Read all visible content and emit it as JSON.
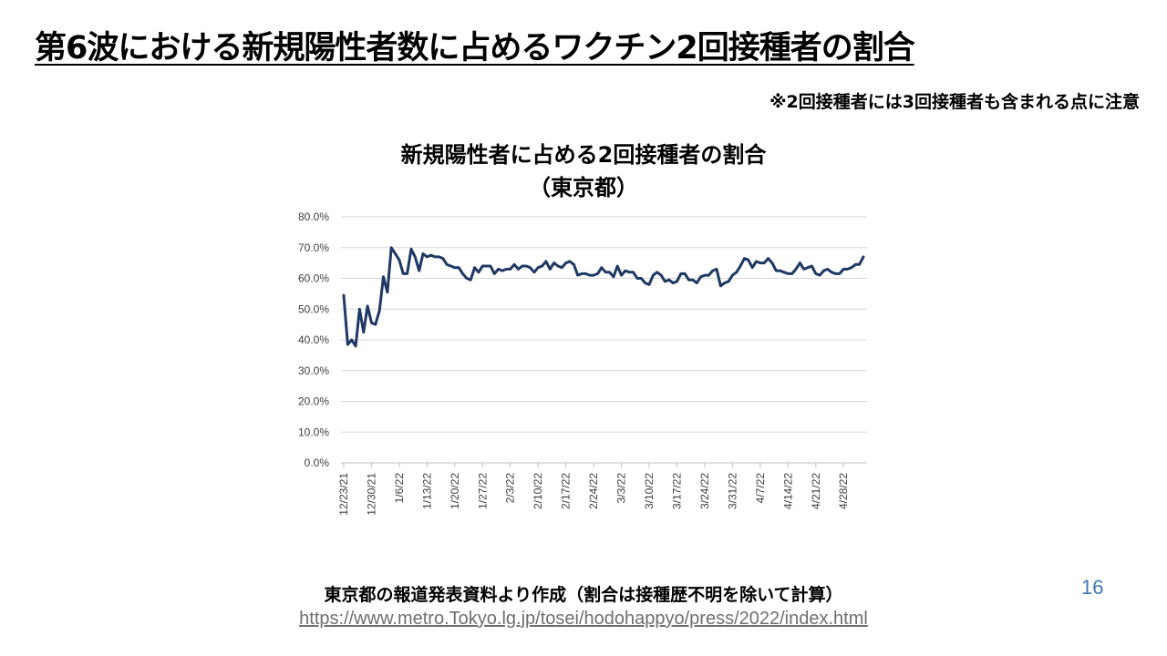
{
  "slide": {
    "title": "第6波における新規陽性者数に占めるワクチン2回接種者の割合",
    "note": "※2回接種者には3回接種者も含まれる点に注意",
    "source": "東京都の報道発表資料より作成（割合は接種歴不明を除いて計算）",
    "url": "https://www.metro.Tokyo.lg.jp/tosei/hodohappyo/press/2022/index.html",
    "page_number": "16"
  },
  "chart_data": {
    "type": "line",
    "title": "新規陽性者に占める2回接種者の割合",
    "subtitle": "（東京都）",
    "xlabel": "",
    "ylabel": "",
    "ylim": [
      0,
      80
    ],
    "yticks": [
      "0.0%",
      "10.0%",
      "20.0%",
      "30.0%",
      "40.0%",
      "50.0%",
      "60.0%",
      "70.0%",
      "80.0%"
    ],
    "xtick_labels": [
      "12/23/21",
      "12/30/21",
      "1/6/22",
      "1/13/22",
      "1/20/22",
      "1/27/22",
      "2/3/22",
      "2/10/22",
      "2/17/22",
      "2/24/22",
      "3/3/22",
      "3/10/22",
      "3/17/22",
      "3/24/22",
      "3/31/22",
      "4/7/22",
      "4/14/22",
      "4/21/22",
      "4/28/22"
    ],
    "grid": true,
    "legend": "none",
    "line_color": "#1f3864",
    "series": [
      {
        "values": [
          54.5,
          38.5,
          40,
          38,
          50,
          42.5,
          51,
          45.5,
          45,
          49.5,
          60.5,
          55.5,
          70,
          68,
          66,
          61.5,
          61.5,
          69.5,
          67,
          62.5,
          68,
          67,
          67.5,
          67,
          67,
          66.5,
          64.5,
          64,
          63.5,
          63.5,
          61.5,
          60,
          59.5,
          63.5,
          62,
          64,
          64,
          64,
          61.5,
          63,
          62.5,
          63,
          63,
          64.5,
          63,
          64,
          64,
          63.5,
          62,
          63.5,
          64,
          65.5,
          63,
          65,
          64,
          63.5,
          65,
          65.5,
          64.5,
          61,
          61.5,
          61.5,
          61,
          61,
          61.5,
          63.5,
          62,
          62,
          60.5,
          64,
          61,
          62.5,
          62,
          62,
          60,
          60,
          58.5,
          58,
          61,
          62,
          61,
          59,
          59.5,
          58.5,
          59,
          61.5,
          61.5,
          59.5,
          59.5,
          58.5,
          60.5,
          61,
          61,
          62.5,
          63,
          57.5,
          58.5,
          59,
          61,
          62,
          64,
          66.5,
          66,
          63.5,
          65.5,
          65,
          65,
          66.5,
          65,
          62.5,
          62.5,
          62,
          61.5,
          61.5,
          63,
          65,
          63,
          63.5,
          64,
          61.5,
          61,
          62.5,
          63,
          62,
          61.5,
          61.5,
          63,
          63,
          63.5,
          64.5,
          64.5,
          67
        ]
      }
    ]
  }
}
